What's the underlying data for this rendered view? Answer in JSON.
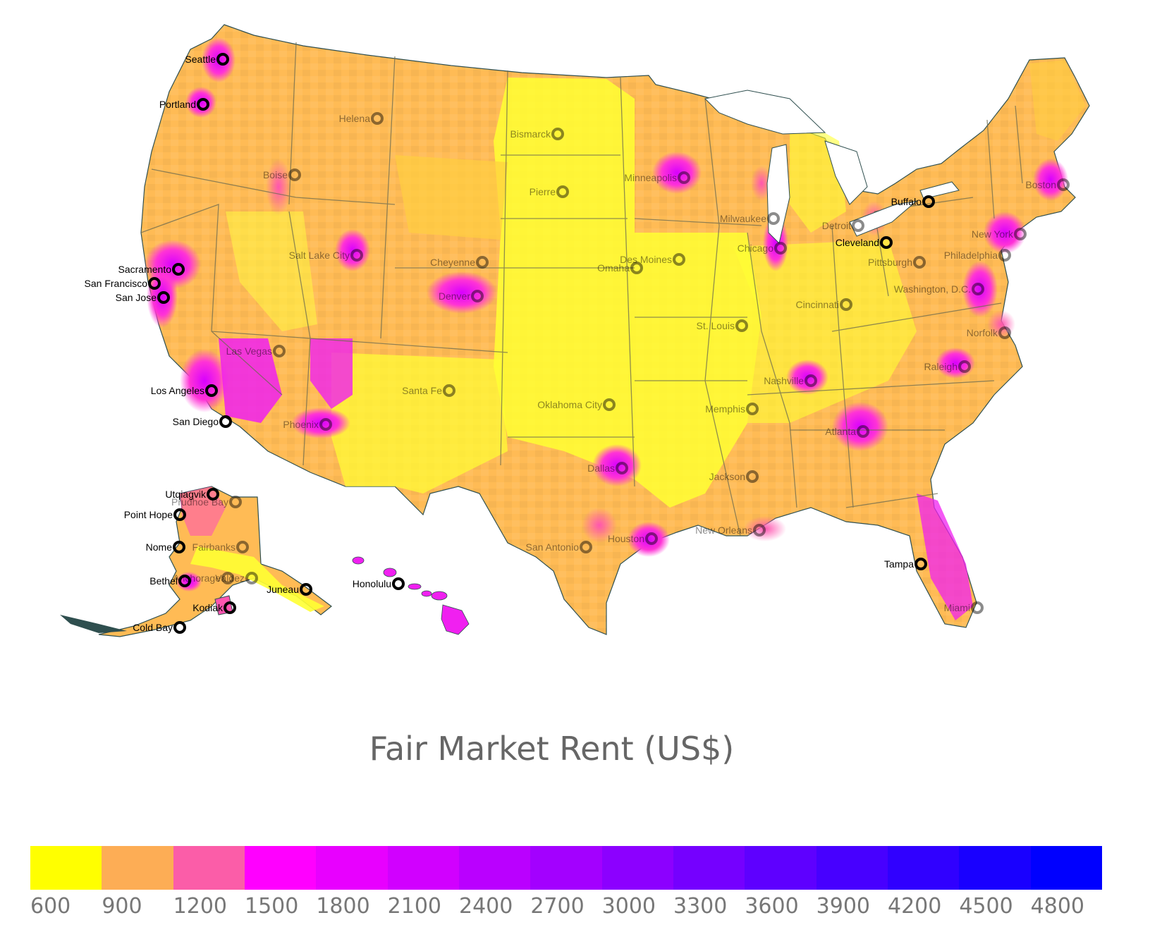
{
  "map": {
    "cities": [
      {
        "name": "Seattle",
        "emphasis": "dark"
      },
      {
        "name": "Portland",
        "emphasis": "dark"
      },
      {
        "name": "Helena",
        "emphasis": "faded"
      },
      {
        "name": "Bismarck",
        "emphasis": "faded"
      },
      {
        "name": "Boise",
        "emphasis": "faded"
      },
      {
        "name": "Pierre",
        "emphasis": "faded"
      },
      {
        "name": "Minneapolis",
        "emphasis": "faded"
      },
      {
        "name": "Buffalo",
        "emphasis": "dark"
      },
      {
        "name": "Boston",
        "emphasis": "faded"
      },
      {
        "name": "Milwaukee",
        "emphasis": "faded"
      },
      {
        "name": "Detroit",
        "emphasis": "faded"
      },
      {
        "name": "Cleveland",
        "emphasis": "dark"
      },
      {
        "name": "Chicago",
        "emphasis": "faded"
      },
      {
        "name": "New York",
        "emphasis": "faded"
      },
      {
        "name": "Salt Lake City",
        "emphasis": "faded"
      },
      {
        "name": "Cheyenne",
        "emphasis": "faded"
      },
      {
        "name": "Des Moines",
        "emphasis": "faded"
      },
      {
        "name": "Pittsburgh",
        "emphasis": "faded"
      },
      {
        "name": "Philadelphia",
        "emphasis": "faded"
      },
      {
        "name": "Omaha",
        "emphasis": "faded"
      },
      {
        "name": "Sacramento",
        "emphasis": "dark"
      },
      {
        "name": "San Francisco",
        "emphasis": "dark"
      },
      {
        "name": "San Jose",
        "emphasis": "dark"
      },
      {
        "name": "Denver",
        "emphasis": "faded"
      },
      {
        "name": "Washington, D.C.",
        "emphasis": "faded"
      },
      {
        "name": "Cincinnati",
        "emphasis": "faded"
      },
      {
        "name": "St. Louis",
        "emphasis": "faded"
      },
      {
        "name": "Norfolk",
        "emphasis": "faded"
      },
      {
        "name": "Las Vegas",
        "emphasis": "faded"
      },
      {
        "name": "Raleigh",
        "emphasis": "faded"
      },
      {
        "name": "Nashville",
        "emphasis": "faded"
      },
      {
        "name": "Los Angeles",
        "emphasis": "dark"
      },
      {
        "name": "Santa Fe",
        "emphasis": "faded"
      },
      {
        "name": "Oklahoma City",
        "emphasis": "faded"
      },
      {
        "name": "Memphis",
        "emphasis": "faded"
      },
      {
        "name": "San Diego",
        "emphasis": "dark"
      },
      {
        "name": "Phoenix",
        "emphasis": "faded"
      },
      {
        "name": "Atlanta",
        "emphasis": "faded"
      },
      {
        "name": "Dallas",
        "emphasis": "faded"
      },
      {
        "name": "Jackson",
        "emphasis": "faded"
      },
      {
        "name": "Utqiagvik",
        "emphasis": "dark"
      },
      {
        "name": "Prudhoe Bay",
        "emphasis": "faded"
      },
      {
        "name": "Point Hope",
        "emphasis": "dark"
      },
      {
        "name": "New Orleans",
        "emphasis": "faded"
      },
      {
        "name": "Houston",
        "emphasis": "faded"
      },
      {
        "name": "Nome",
        "emphasis": "dark"
      },
      {
        "name": "Fairbanks",
        "emphasis": "faded"
      },
      {
        "name": "San Antonio",
        "emphasis": "faded"
      },
      {
        "name": "Tampa",
        "emphasis": "dark"
      },
      {
        "name": "Bethel",
        "emphasis": "dark"
      },
      {
        "name": "Anchorage",
        "emphasis": "faded"
      },
      {
        "name": "Valdez",
        "emphasis": "faded"
      },
      {
        "name": "Juneau",
        "emphasis": "dark"
      },
      {
        "name": "Honolulu",
        "emphasis": "dark"
      },
      {
        "name": "Kodiak",
        "emphasis": "dark"
      },
      {
        "name": "Miami",
        "emphasis": "faded"
      },
      {
        "name": "Cold Bay",
        "emphasis": "dark"
      }
    ]
  },
  "legend": {
    "title": "Fair Market Rent (US$)",
    "colors": [
      "#ffff00",
      "#fdad55",
      "#fb5da8",
      "#ff00ff",
      "#e800ff",
      "#d100ff",
      "#ba00ff",
      "#a300ff",
      "#8c00ff",
      "#7500ff",
      "#5e00ff",
      "#4700ff",
      "#3000ff",
      "#1900ff",
      "#0000ff"
    ],
    "ticks": [
      "600",
      "900",
      "1200",
      "1500",
      "1800",
      "2100",
      "2400",
      "2700",
      "3000",
      "3300",
      "3600",
      "3900",
      "4200",
      "4500",
      "4800"
    ]
  }
}
